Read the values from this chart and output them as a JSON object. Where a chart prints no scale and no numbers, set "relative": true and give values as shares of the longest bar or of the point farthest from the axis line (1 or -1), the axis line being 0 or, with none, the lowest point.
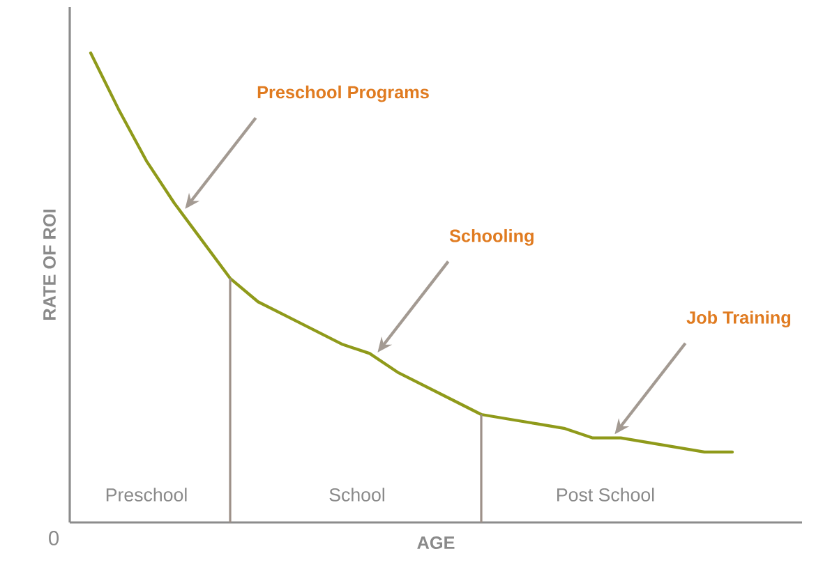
{
  "chart_data": {
    "type": "line",
    "relative": true,
    "xlabel": "AGE",
    "ylabel": "RATE OF ROI",
    "marker": "none",
    "line_style": "solid",
    "categories": [
      null,
      null,
      null,
      null,
      null,
      null,
      null,
      null,
      null,
      null,
      null,
      null,
      null,
      null,
      null,
      null,
      null,
      null,
      null,
      null,
      null,
      null,
      null,
      null
    ],
    "series": [
      {
        "color": "#8f9a1a",
        "values": [
          1.0,
          0.88,
          0.77,
          0.68,
          0.6,
          0.52,
          0.47,
          0.44,
          0.41,
          0.38,
          0.36,
          0.32,
          0.29,
          0.26,
          0.23,
          0.22,
          0.21,
          0.2,
          0.18,
          0.18,
          0.17,
          0.16,
          0.15,
          0.15
        ]
      }
    ],
    "annotations": [
      "0",
      "Preschool Programs",
      "Schooling",
      "Job Training",
      "Preschool",
      "School",
      "Post School"
    ]
  }
}
